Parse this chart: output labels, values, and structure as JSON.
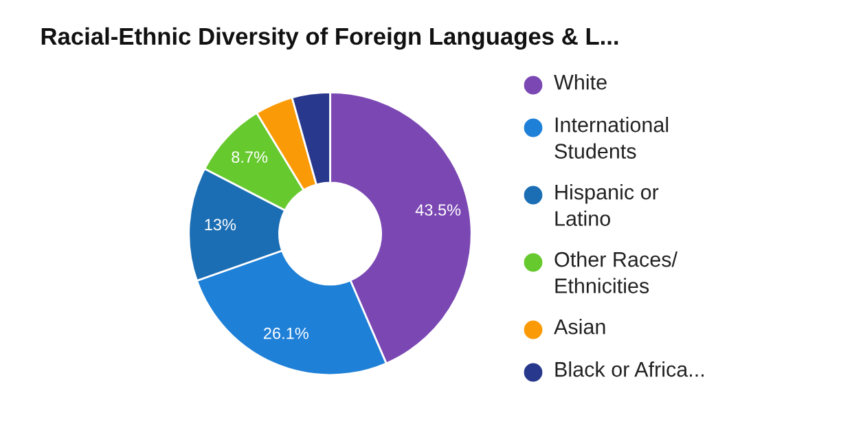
{
  "chart_data": {
    "type": "donut",
    "title": "Racial-Ethnic Diversity of Foreign Languages & L...",
    "categories": [
      "White",
      "International\nStudents",
      "Hispanic or\nLatino",
      "Other Races/\nEthnicities",
      "Asian",
      "Black or Africa..."
    ],
    "values": [
      43.5,
      26.1,
      13,
      8.7,
      4.35,
      4.35
    ],
    "colors": [
      "#7b48b3",
      "#1f80d8",
      "#1c6eb4",
      "#66c92e",
      "#fb9a07",
      "#28388c"
    ],
    "value_labels": [
      "43.5%",
      "26.1%",
      "13%",
      "8.7%",
      null,
      null
    ],
    "legend": "right"
  }
}
